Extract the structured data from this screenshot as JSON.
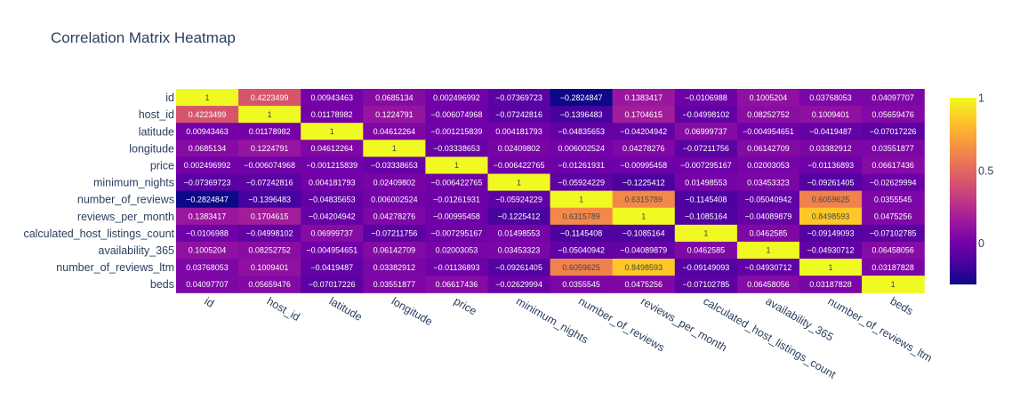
{
  "chart_data": {
    "type": "heatmap",
    "title": "Correlation Matrix Heatmap",
    "variables": [
      "id",
      "host_id",
      "latitude",
      "longitude",
      "price",
      "minimum_nights",
      "number_of_reviews",
      "reviews_per_month",
      "calculated_host_listings_count",
      "availability_365",
      "number_of_reviews_ltm",
      "beds"
    ],
    "cell_labels": [
      [
        "1",
        "0.4223499",
        "0.00943463",
        "0.0685134",
        "0.002496992",
        "−0.07369723",
        "−0.2824847",
        "0.1383417",
        "−0.0106988",
        "0.1005204",
        "0.03768053",
        "0.04097707"
      ],
      [
        "0.4223499",
        "1",
        "0.01178982",
        "0.1224791",
        "−0.006074968",
        "−0.07242816",
        "−0.1396483",
        "0.1704615",
        "−0.04998102",
        "0.08252752",
        "0.1009401",
        "0.05659476"
      ],
      [
        "0.00943463",
        "0.01178982",
        "1",
        "0.04612264",
        "−0.001215839",
        "0.004181793",
        "−0.04835653",
        "−0.04204942",
        "0.06999737",
        "−0.004954651",
        "−0.0419487",
        "−0.07017226"
      ],
      [
        "0.0685134",
        "0.1224791",
        "0.04612264",
        "1",
        "−0.03338653",
        "0.02409802",
        "0.006002524",
        "0.04278276",
        "−0.07211756",
        "0.06142709",
        "0.03382912",
        "0.03551877"
      ],
      [
        "0.002496992",
        "−0.006074968",
        "−0.001215839",
        "−0.03338653",
        "1",
        "−0.006422765",
        "−0.01261931",
        "−0.00995458",
        "−0.007295167",
        "0.02003053",
        "−0.01136893",
        "0.06617436"
      ],
      [
        "−0.07369723",
        "−0.07242816",
        "0.004181793",
        "0.02409802",
        "−0.006422765",
        "1",
        "−0.05924229",
        "−0.1225412",
        "0.01498553",
        "0.03453323",
        "−0.09261405",
        "−0.02629994"
      ],
      [
        "−0.2824847",
        "−0.1396483",
        "−0.04835653",
        "0.006002524",
        "−0.01261931",
        "−0.05924229",
        "1",
        "0.6315789",
        "−0.1145408",
        "−0.05040942",
        "0.6059625",
        "0.0355545"
      ],
      [
        "0.1383417",
        "0.1704615",
        "−0.04204942",
        "0.04278276",
        "−0.00995458",
        "−0.1225412",
        "0.6315789",
        "1",
        "−0.1085164",
        "−0.04089879",
        "0.8498593",
        "0.0475256"
      ],
      [
        "−0.0106988",
        "−0.04998102",
        "0.06999737",
        "−0.07211756",
        "−0.007295167",
        "0.01498553",
        "−0.1145408",
        "−0.1085164",
        "1",
        "0.0462585",
        "−0.09149093",
        "−0.07102785"
      ],
      [
        "0.1005204",
        "0.08252752",
        "−0.004954651",
        "0.06142709",
        "0.02003053",
        "0.03453323",
        "−0.05040942",
        "−0.04089879",
        "0.0462585",
        "1",
        "−0.04930712",
        "0.06458056"
      ],
      [
        "0.03768053",
        "0.1009401",
        "−0.0419487",
        "0.03382912",
        "−0.01136893",
        "−0.09261405",
        "0.6059625",
        "0.8498593",
        "−0.09149093",
        "−0.04930712",
        "1",
        "0.03187828"
      ],
      [
        "0.04097707",
        "0.05659476",
        "−0.07017226",
        "0.03551877",
        "0.06617436",
        "−0.02629994",
        "0.0355545",
        "0.0475256",
        "−0.07102785",
        "0.06458056",
        "0.03187828",
        "1"
      ]
    ],
    "colorscale": "plasma",
    "colorscale_stops": [
      "#0d0887",
      "#46039f",
      "#7201a8",
      "#9c179e",
      "#bd3786",
      "#d8576b",
      "#ed7953",
      "#fb9f3a",
      "#fdca26",
      "#f0f921"
    ],
    "zrange": [
      -0.2824847,
      1
    ],
    "colorbar_ticks": [
      {
        "value": 0,
        "label": "0"
      },
      {
        "value": 0.5,
        "label": "0.5"
      },
      {
        "value": 1,
        "label": "1"
      }
    ],
    "grid": false
  }
}
